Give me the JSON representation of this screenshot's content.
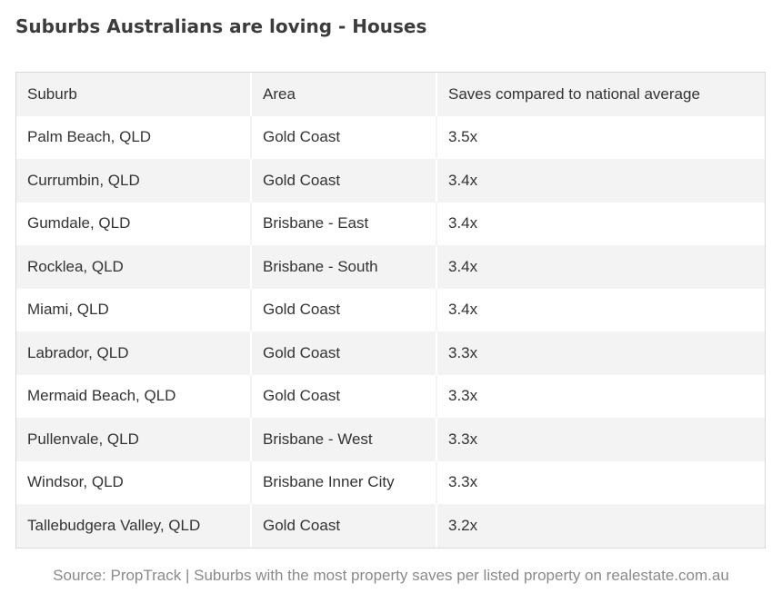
{
  "title": "Suburbs Australians are loving - Houses",
  "table": {
    "headers": [
      "Suburb",
      "Area",
      "Saves compared to national average"
    ],
    "rows": [
      [
        "Palm Beach, QLD",
        "Gold Coast",
        "3.5x"
      ],
      [
        "Currumbin, QLD",
        "Gold Coast",
        "3.4x"
      ],
      [
        "Gumdale, QLD",
        "Brisbane - East",
        "3.4x"
      ],
      [
        "Rocklea, QLD",
        "Brisbane - South",
        "3.4x"
      ],
      [
        "Miami, QLD",
        "Gold Coast",
        "3.4x"
      ],
      [
        "Labrador, QLD",
        "Gold Coast",
        "3.3x"
      ],
      [
        "Mermaid Beach, QLD",
        "Gold Coast",
        "3.3x"
      ],
      [
        "Pullenvale, QLD",
        "Brisbane - West",
        "3.3x"
      ],
      [
        "Windsor, QLD",
        "Brisbane Inner City",
        "3.3x"
      ],
      [
        "Tallebudgera Valley, QLD",
        "Gold Coast",
        "3.2x"
      ]
    ]
  },
  "source": "Source: PropTrack | Suburbs with the most property saves per listed property on realestate.com.au",
  "colors": {
    "row_shade": "#f3f3f3",
    "text": "#333333",
    "source_text": "#8a8a8a"
  }
}
